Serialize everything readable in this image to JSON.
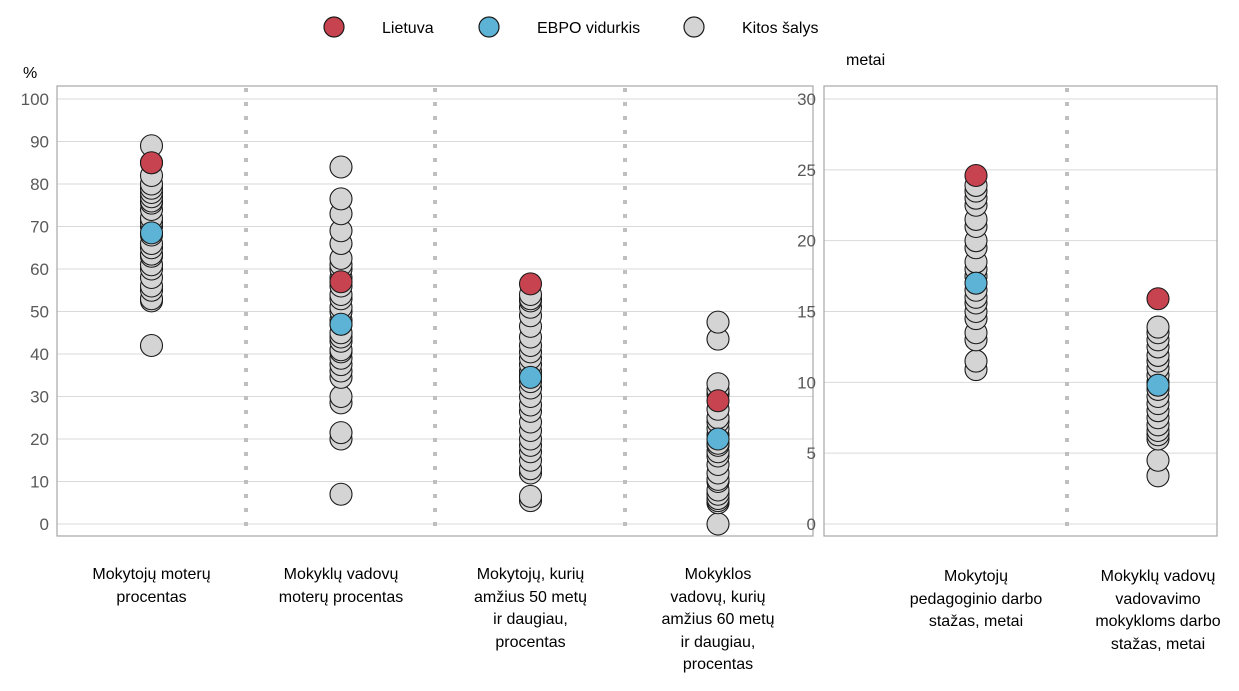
{
  "legend": [
    {
      "label": "Lietuva",
      "color": "#c7434f"
    },
    {
      "label": "EBPO vidurkis",
      "color": "#5cb3d6"
    },
    {
      "label": "Kitos šalys",
      "color": "#d4d4d4"
    }
  ],
  "chart_data": [
    {
      "type": "scatter",
      "unit_label": "%",
      "ylim": [
        0,
        100
      ],
      "yticks": [
        "0",
        "10",
        "20",
        "30",
        "40",
        "50",
        "60",
        "70",
        "80",
        "90",
        "100"
      ],
      "grid": true,
      "categories": [
        {
          "label": "Mokytojų moterų\nprocentas",
          "lietuva": 85,
          "ebpo": 68.5,
          "others": [
            42,
            52.5,
            53,
            55,
            56,
            58,
            60,
            61,
            63,
            63.5,
            65,
            66,
            68,
            70,
            71,
            72,
            74,
            75.5,
            76,
            77,
            78,
            79,
            80,
            82,
            85,
            89
          ]
        },
        {
          "label": "Mokyklų vadovų\nmoterų procentas",
          "lietuva": 57,
          "ebpo": 47,
          "others": [
            7,
            20,
            21.5,
            28.5,
            30,
            34.5,
            36,
            37.5,
            39,
            40.5,
            41,
            43,
            44,
            45,
            47,
            48,
            50,
            51,
            53,
            54,
            56,
            58,
            60,
            61,
            62.5,
            66,
            69,
            73,
            76.5,
            84
          ]
        },
        {
          "label": "Mokytojų, kurių\namžius 50 metų\nir daugiau,\nprocentas",
          "lietuva": 56.5,
          "ebpo": 34.5,
          "others": [
            5.5,
            6.5,
            12,
            13,
            15,
            17,
            18.5,
            20,
            22,
            24,
            26.5,
            28,
            30,
            32,
            33.5,
            35,
            36,
            37.5,
            39,
            40.5,
            42,
            44,
            46.5,
            49,
            51,
            52.5,
            53,
            54
          ]
        },
        {
          "label": "Mokyklos\nvadovų, kurių\namžius 60 metų\nir daugiau,\nprocentas",
          "lietuva": 29,
          "ebpo": 20,
          "others": [
            0,
            5,
            5.5,
            6,
            7,
            8,
            10,
            10.5,
            12,
            14,
            16,
            17,
            18.5,
            19,
            21,
            22.5,
            24,
            25,
            27,
            30.5,
            31.5,
            33,
            43.5,
            47.5
          ]
        }
      ]
    },
    {
      "type": "scatter",
      "unit_label": "metai",
      "ylim": [
        0,
        30
      ],
      "yticks": [
        "0",
        "5",
        "10",
        "15",
        "20",
        "25",
        "30"
      ],
      "grid": true,
      "categories": [
        {
          "label": "Mokytojų\npedagoginio darbo\nstažas, metai",
          "lietuva": 24.6,
          "ebpo": 17,
          "others": [
            10.9,
            11.5,
            13,
            13.5,
            14.5,
            15,
            15.6,
            16,
            16.5,
            17.5,
            18,
            18.5,
            19.5,
            20,
            21,
            21.5,
            22.5,
            23,
            23.5,
            23.9
          ]
        },
        {
          "label": "Mokyklų vadovų\nvadovavimo\nmokykloms darbo\nstažas, metai",
          "lietuva": 15.9,
          "ebpo": 9.8,
          "others": [
            3.4,
            4.5,
            6,
            6.3,
            6.6,
            7,
            7.5,
            8,
            8.5,
            9,
            9.5,
            10,
            10.5,
            11,
            11.5,
            11.9,
            12.5,
            13,
            13.5,
            13.9
          ]
        }
      ]
    }
  ]
}
